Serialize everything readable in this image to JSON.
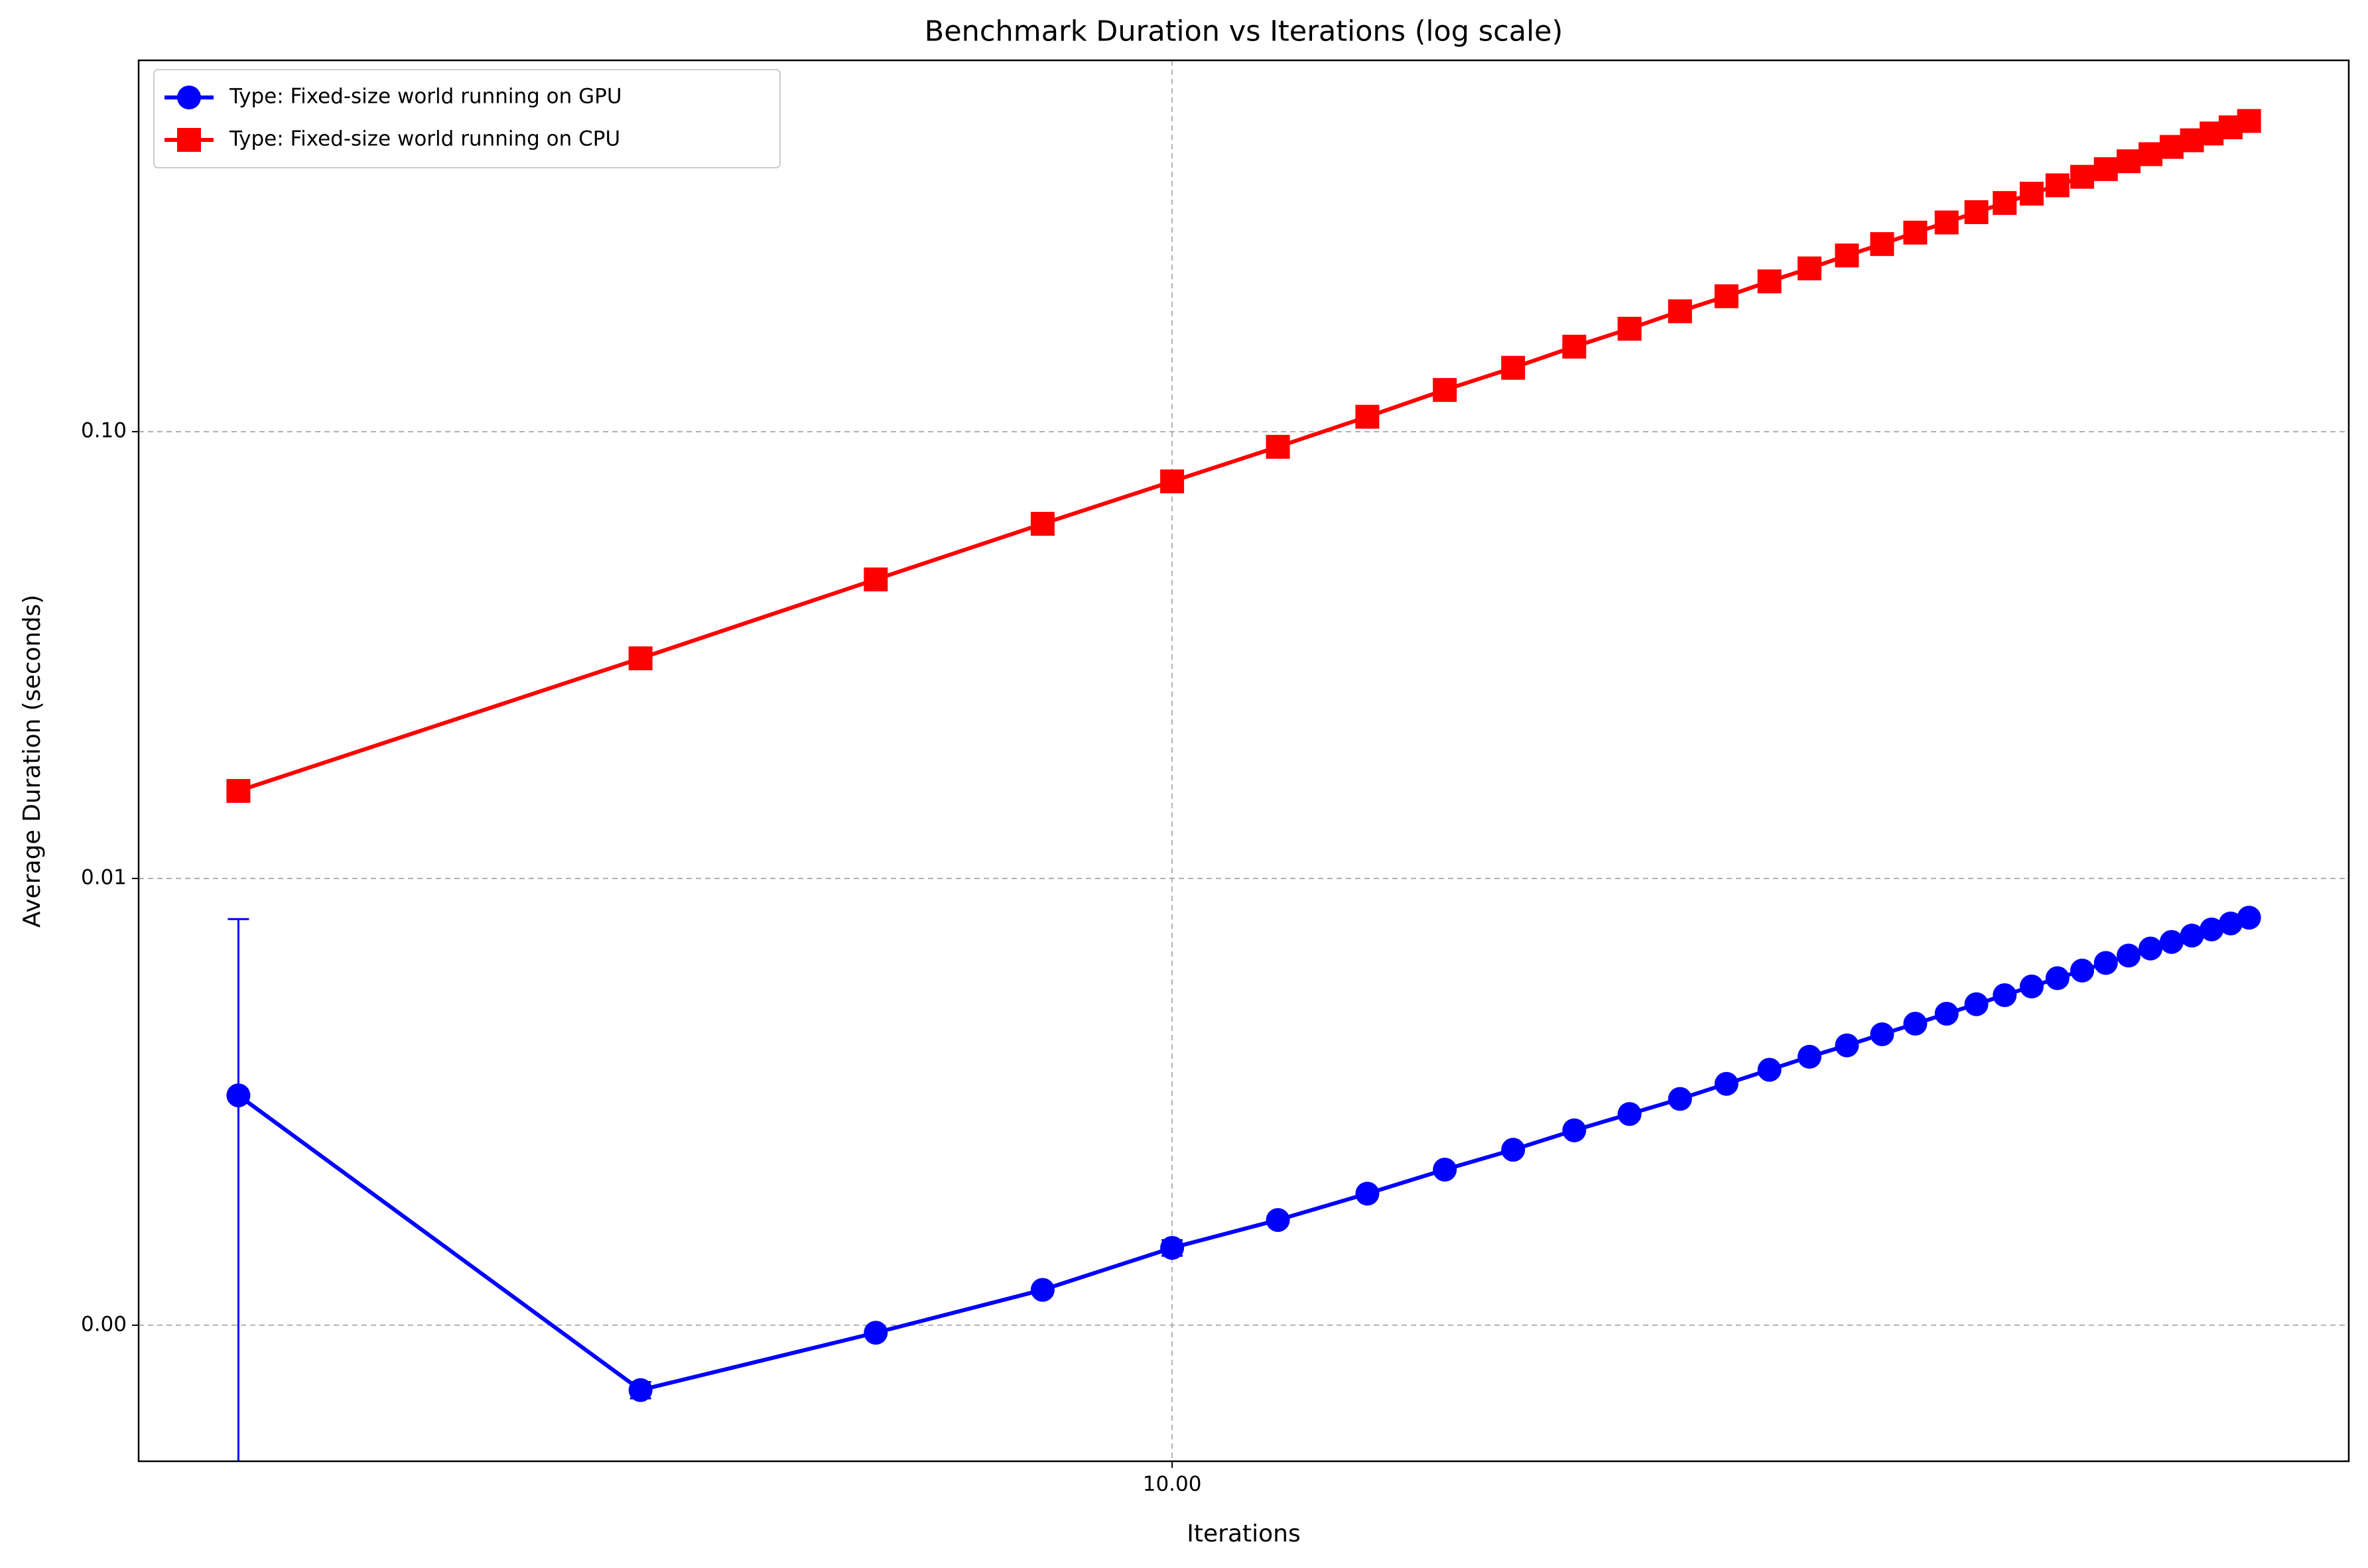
{
  "chart_data": {
    "type": "line",
    "title": "Benchmark Duration vs Iterations (log scale)",
    "x_label": "Iterations",
    "y_label": "Average Duration (seconds)",
    "x_scale": "log",
    "y_scale": "log",
    "grid": true,
    "legend": "upper left",
    "x": [
      2,
      4,
      6,
      8,
      10,
      12,
      14,
      16,
      18,
      20,
      22,
      24,
      26,
      28,
      30,
      32,
      34,
      36,
      38,
      40,
      42,
      44,
      46,
      48,
      50,
      52,
      54,
      56,
      58,
      60,
      62,
      64
    ],
    "xlim": [
      1.684,
      76.0
    ],
    "xticks": [
      {
        "value": 10,
        "label": "10.00"
      }
    ],
    "ylim": [
      0.000496,
      0.678
    ],
    "yticks": [
      {
        "value": 0.001,
        "label": "0.00"
      },
      {
        "value": 0.01,
        "label": "0.01"
      },
      {
        "value": 0.1,
        "label": "0.10"
      }
    ],
    "series": [
      {
        "name": "Type: Fixed-size world running on GPU",
        "color": "#0000ff",
        "marker": "circle",
        "values": [
          0.00327,
          0.000716,
          0.000962,
          0.0012,
          0.00149,
          0.00172,
          0.00197,
          0.00223,
          0.00247,
          0.00273,
          0.00297,
          0.00321,
          0.00347,
          0.00373,
          0.00399,
          0.00423,
          0.00448,
          0.00473,
          0.00498,
          0.00523,
          0.00548,
          0.00573,
          0.00598,
          0.00622,
          0.00647,
          0.00672,
          0.00697,
          0.00721,
          0.00745,
          0.00769,
          0.00793,
          0.00817
        ],
        "errors": [
          0.00484,
          3e-05,
          2e-05,
          3e-05,
          6e-05,
          2e-05,
          2e-05,
          2e-05,
          2e-05,
          2e-05,
          2e-05,
          2e-05,
          2e-05,
          2e-05,
          2e-05,
          2e-05,
          2e-05,
          2e-05,
          2e-05,
          2e-05,
          2e-05,
          2e-05,
          2e-05,
          2e-05,
          2e-05,
          2e-05,
          2e-05,
          2e-05,
          2e-05,
          2e-05,
          2e-05,
          2e-05
        ]
      },
      {
        "name": "Type: Fixed-size world running on CPU",
        "color": "#ff0000",
        "marker": "square",
        "values": [
          0.0157,
          0.0311,
          0.0467,
          0.0622,
          0.0774,
          0.0925,
          0.108,
          0.124,
          0.139,
          0.155,
          0.17,
          0.186,
          0.201,
          0.217,
          0.232,
          0.248,
          0.263,
          0.279,
          0.294,
          0.31,
          0.325,
          0.341,
          0.356,
          0.372,
          0.387,
          0.403,
          0.418,
          0.434,
          0.449,
          0.465,
          0.48,
          0.496
        ]
      }
    ]
  }
}
